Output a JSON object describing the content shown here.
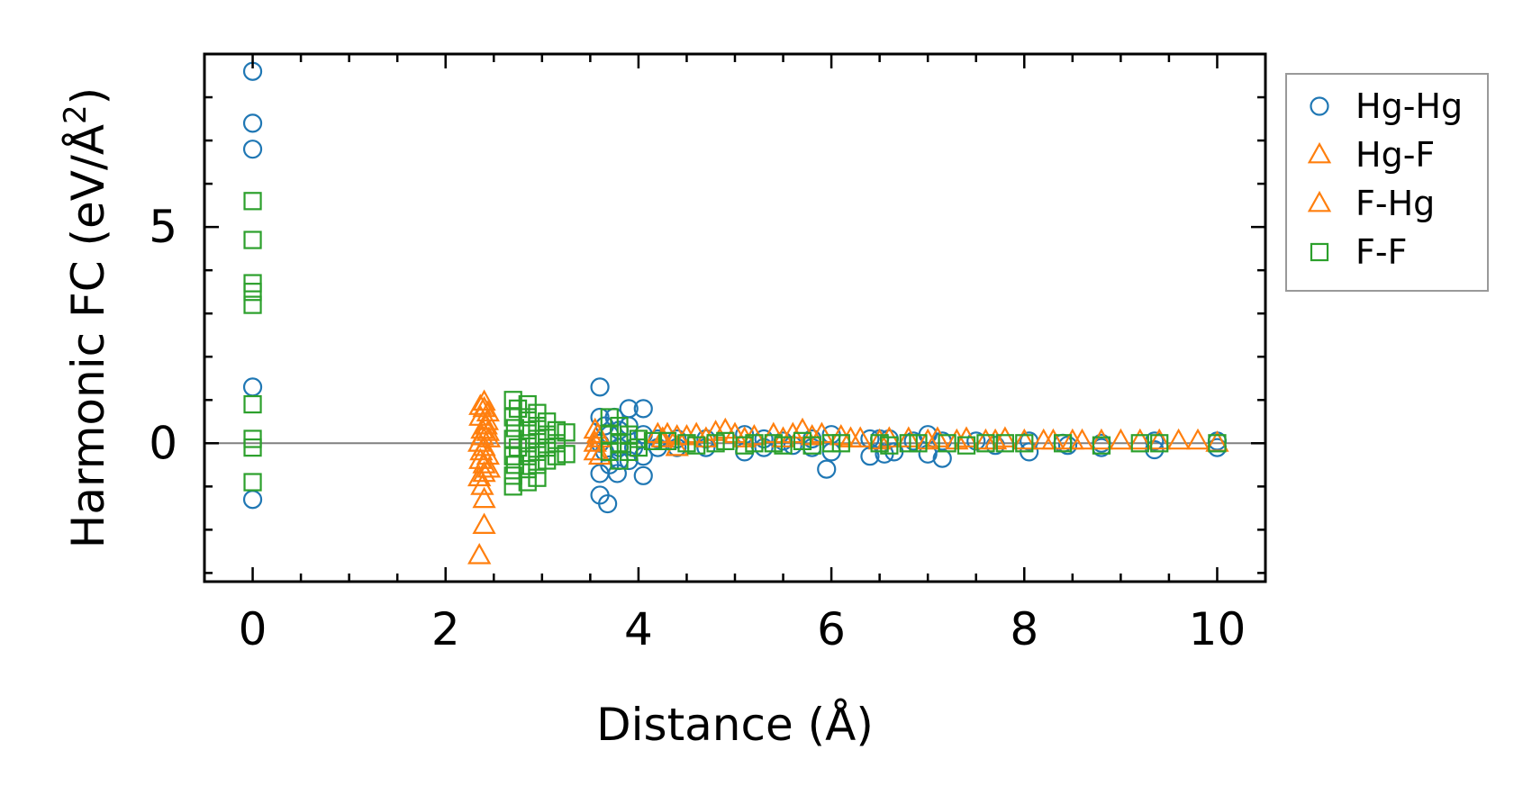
{
  "chart_data": {
    "type": "scatter",
    "title": "",
    "xlabel": "Distance (Å)",
    "ylabel_main": "Harmonic FC (eV/Å",
    "ylabel_sup": "2",
    "ylabel_close": ")",
    "xlim": [
      -0.5,
      10.5
    ],
    "ylim": [
      -3.2,
      9.0
    ],
    "xticks": [
      0,
      2,
      4,
      6,
      8,
      10
    ],
    "xtick_labels": [
      "0",
      "2",
      "4",
      "6",
      "8",
      "10"
    ],
    "yticks": [
      0,
      5
    ],
    "ytick_labels": [
      "0",
      "5"
    ],
    "x_minor_step": 0.5,
    "y_minor_step": 1,
    "zero_line": true,
    "grid": false,
    "legend_position": "outside-top-right",
    "series": [
      {
        "name": "Hg-Hg",
        "marker": "circle",
        "color": "#1f77b4",
        "points": [
          [
            0,
            8.6
          ],
          [
            0,
            7.4
          ],
          [
            0,
            6.8
          ],
          [
            0,
            1.3
          ],
          [
            0,
            -1.3
          ],
          [
            3.6,
            1.3
          ],
          [
            3.6,
            0.6
          ],
          [
            3.65,
            0.4
          ],
          [
            3.7,
            0.2
          ],
          [
            3.6,
            0.0
          ],
          [
            3.65,
            -0.2
          ],
          [
            3.7,
            -0.5
          ],
          [
            3.6,
            -0.7
          ],
          [
            3.6,
            -1.2
          ],
          [
            3.68,
            -1.4
          ],
          [
            3.75,
            0.6
          ],
          [
            3.8,
            0.3
          ],
          [
            3.8,
            -0.1
          ],
          [
            3.8,
            -0.4
          ],
          [
            3.78,
            -0.7
          ],
          [
            3.9,
            0.8
          ],
          [
            3.9,
            0.4
          ],
          [
            3.95,
            -0.1
          ],
          [
            3.9,
            -0.4
          ],
          [
            4.05,
            0.8
          ],
          [
            4.05,
            0.2
          ],
          [
            4.05,
            -0.3
          ],
          [
            4.05,
            -0.75
          ],
          [
            4.2,
            0.1
          ],
          [
            4.2,
            -0.1
          ],
          [
            4.4,
            0.1
          ],
          [
            4.4,
            -0.1
          ],
          [
            4.7,
            0.1
          ],
          [
            4.7,
            -0.1
          ],
          [
            5.1,
            0.2
          ],
          [
            5.1,
            -0.2
          ],
          [
            5.3,
            0.1
          ],
          [
            5.3,
            -0.1
          ],
          [
            5.5,
            0.05
          ],
          [
            5.6,
            -0.05
          ],
          [
            5.8,
            0.1
          ],
          [
            5.8,
            -0.1
          ],
          [
            6.0,
            0.2
          ],
          [
            5.95,
            -0.6
          ],
          [
            6.0,
            -0.2
          ],
          [
            6.4,
            0.1
          ],
          [
            6.4,
            -0.3
          ],
          [
            6.5,
            0.1
          ],
          [
            6.55,
            -0.25
          ],
          [
            6.6,
            0.1
          ],
          [
            6.65,
            -0.2
          ],
          [
            6.85,
            0.05
          ],
          [
            7.0,
            0.2
          ],
          [
            7.0,
            -0.25
          ],
          [
            7.15,
            0.05
          ],
          [
            7.15,
            -0.35
          ],
          [
            7.5,
            0.05
          ],
          [
            7.7,
            -0.05
          ],
          [
            8.05,
            0.05
          ],
          [
            8.05,
            -0.2
          ],
          [
            8.4,
            0.0
          ],
          [
            8.45,
            -0.05
          ],
          [
            8.8,
            0.0
          ],
          [
            8.8,
            -0.1
          ],
          [
            9.35,
            0.05
          ],
          [
            9.35,
            -0.15
          ],
          [
            10.0,
            0.05
          ],
          [
            10.0,
            -0.1
          ]
        ]
      },
      {
        "name": "Hg-F",
        "marker": "triangle",
        "color": "#ff7f0e",
        "points": [
          [
            2.35,
            -2.6
          ],
          [
            2.4,
            -1.9
          ],
          [
            2.4,
            -1.3
          ],
          [
            2.38,
            -1.0
          ],
          [
            2.35,
            -0.8
          ],
          [
            2.4,
            -0.7
          ],
          [
            2.45,
            -0.6
          ],
          [
            2.36,
            -0.4
          ],
          [
            2.44,
            -0.3
          ],
          [
            2.4,
            -0.1
          ],
          [
            2.35,
            0.0
          ],
          [
            2.45,
            0.1
          ],
          [
            2.38,
            0.3
          ],
          [
            2.42,
            0.4
          ],
          [
            2.36,
            0.6
          ],
          [
            2.44,
            0.7
          ],
          [
            2.4,
            0.8
          ],
          [
            2.4,
            0.95
          ],
          [
            2.43,
            0.5
          ],
          [
            2.37,
            -0.2
          ],
          [
            3.55,
            0.3
          ],
          [
            3.55,
            0.0
          ],
          [
            3.55,
            -0.2
          ],
          [
            3.6,
            0.1
          ],
          [
            3.6,
            -0.3
          ],
          [
            4.2,
            0.2
          ],
          [
            4.3,
            0.2
          ],
          [
            4.4,
            0.15
          ],
          [
            4.4,
            -0.1
          ],
          [
            4.6,
            0.2
          ],
          [
            4.8,
            0.25
          ],
          [
            4.9,
            0.3
          ],
          [
            5.0,
            0.2
          ],
          [
            5.2,
            0.15
          ],
          [
            5.4,
            0.2
          ],
          [
            5.6,
            0.2
          ],
          [
            5.7,
            0.3
          ],
          [
            5.9,
            0.2
          ],
          [
            6.1,
            0.15
          ],
          [
            6.3,
            0.1
          ],
          [
            6.6,
            0.1
          ],
          [
            6.8,
            0.1
          ],
          [
            7.1,
            0.1
          ],
          [
            7.4,
            0.1
          ],
          [
            7.6,
            0.05
          ],
          [
            7.8,
            0.1
          ],
          [
            8.0,
            0.05
          ],
          [
            8.3,
            0.05
          ],
          [
            8.6,
            0.05
          ],
          [
            8.8,
            0.05
          ],
          [
            9.0,
            0.05
          ],
          [
            9.6,
            0.05
          ],
          [
            9.8,
            0.05
          ]
        ]
      },
      {
        "name": "F-Hg",
        "marker": "triangle",
        "color": "#ff7f0e",
        "points": [
          [
            2.36,
            0.85
          ],
          [
            2.44,
            0.25
          ],
          [
            2.4,
            -0.5
          ],
          [
            2.38,
            0.15
          ],
          [
            3.58,
            0.2
          ],
          [
            4.25,
            0.1
          ],
          [
            4.5,
            0.15
          ],
          [
            4.7,
            0.1
          ],
          [
            5.1,
            0.1
          ],
          [
            5.5,
            0.1
          ],
          [
            5.8,
            0.15
          ],
          [
            6.2,
            0.1
          ],
          [
            6.5,
            0.05
          ],
          [
            7.0,
            0.05
          ],
          [
            7.3,
            0.05
          ],
          [
            7.7,
            0.05
          ],
          [
            8.2,
            0.05
          ],
          [
            8.5,
            0.05
          ],
          [
            9.2,
            0.05
          ],
          [
            9.4,
            0.05
          ],
          [
            10.0,
            0.0
          ]
        ]
      },
      {
        "name": "F-F",
        "marker": "square",
        "color": "#2ca02c",
        "points": [
          [
            0,
            5.6
          ],
          [
            0,
            4.7
          ],
          [
            0,
            3.7
          ],
          [
            0,
            3.5
          ],
          [
            0,
            3.2
          ],
          [
            0,
            0.9
          ],
          [
            0,
            0.1
          ],
          [
            0,
            -0.1
          ],
          [
            0,
            -0.9
          ],
          [
            2.7,
            1.0
          ],
          [
            2.75,
            0.8
          ],
          [
            2.7,
            0.6
          ],
          [
            2.72,
            0.35
          ],
          [
            2.7,
            0.1
          ],
          [
            2.75,
            -0.1
          ],
          [
            2.7,
            -0.3
          ],
          [
            2.72,
            -0.5
          ],
          [
            2.7,
            -0.75
          ],
          [
            2.7,
            -1.0
          ],
          [
            2.85,
            0.9
          ],
          [
            2.85,
            0.6
          ],
          [
            2.85,
            0.3
          ],
          [
            2.85,
            0.0
          ],
          [
            2.85,
            -0.3
          ],
          [
            2.85,
            -0.6
          ],
          [
            2.85,
            -0.9
          ],
          [
            2.95,
            0.7
          ],
          [
            2.95,
            0.4
          ],
          [
            2.95,
            0.1
          ],
          [
            2.95,
            -0.2
          ],
          [
            2.95,
            -0.5
          ],
          [
            2.95,
            -0.8
          ],
          [
            3.05,
            0.5
          ],
          [
            3.05,
            0.2
          ],
          [
            3.05,
            -0.1
          ],
          [
            3.05,
            -0.4
          ],
          [
            3.15,
            0.3
          ],
          [
            3.15,
            0.0
          ],
          [
            3.15,
            -0.3
          ],
          [
            3.25,
            0.25
          ],
          [
            3.25,
            -0.25
          ],
          [
            3.7,
            0.6
          ],
          [
            3.7,
            0.2
          ],
          [
            3.7,
            -0.2
          ],
          [
            3.8,
            0.4
          ],
          [
            3.8,
            0.0
          ],
          [
            3.8,
            -0.4
          ],
          [
            3.9,
            0.2
          ],
          [
            3.9,
            -0.2
          ],
          [
            4.0,
            0.1
          ],
          [
            4.0,
            -0.1
          ],
          [
            4.15,
            0.05
          ],
          [
            4.3,
            0.05
          ],
          [
            4.5,
            0.0
          ],
          [
            4.6,
            -0.05
          ],
          [
            4.8,
            0.0
          ],
          [
            4.9,
            0.05
          ],
          [
            5.1,
            -0.05
          ],
          [
            5.2,
            0.0
          ],
          [
            5.4,
            0.0
          ],
          [
            5.5,
            -0.05
          ],
          [
            5.7,
            0.05
          ],
          [
            5.8,
            -0.05
          ],
          [
            6.0,
            0.0
          ],
          [
            6.1,
            0.0
          ],
          [
            6.5,
            0.0
          ],
          [
            6.6,
            -0.05
          ],
          [
            6.8,
            0.0
          ],
          [
            6.9,
            0.0
          ],
          [
            7.2,
            0.0
          ],
          [
            7.4,
            -0.05
          ],
          [
            7.6,
            0.0
          ],
          [
            7.8,
            0.0
          ],
          [
            8.0,
            0.0
          ],
          [
            8.4,
            0.0
          ],
          [
            8.8,
            -0.05
          ],
          [
            9.2,
            0.0
          ],
          [
            9.4,
            0.0
          ],
          [
            10.0,
            0.0
          ]
        ]
      }
    ]
  }
}
